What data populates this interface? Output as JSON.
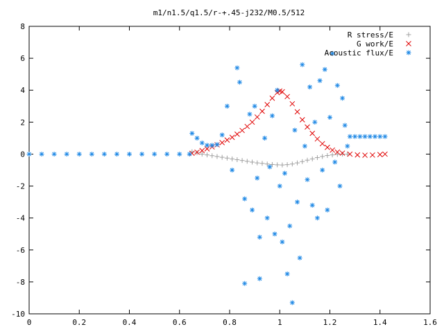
{
  "chart_data": {
    "type": "scatter",
    "title": "m1/n1.5/q1.5/r-+.45-j232/M0.5/512",
    "xlabel": "",
    "ylabel": "",
    "xlim": [
      0,
      1.6
    ],
    "ylim": [
      -10,
      8
    ],
    "x_ticks": [
      "0",
      "0.2",
      "0.4",
      "0.6",
      "0.8",
      "1",
      "1.2",
      "1.4",
      "1.6"
    ],
    "y_ticks": [
      "-10",
      "-8",
      "-6",
      "-4",
      "-2",
      "0",
      "2",
      "4",
      "6",
      "8"
    ],
    "grid": false,
    "legend_position": "top-right",
    "series": [
      {
        "name": "R stress/E",
        "marker": "+",
        "color": "#a0a0a0",
        "points": [
          [
            0.65,
            0.15
          ],
          [
            0.67,
            0.08
          ],
          [
            0.69,
            0.0
          ],
          [
            0.71,
            -0.05
          ],
          [
            0.73,
            -0.1
          ],
          [
            0.75,
            -0.15
          ],
          [
            0.77,
            -0.2
          ],
          [
            0.79,
            -0.25
          ],
          [
            0.81,
            -0.3
          ],
          [
            0.83,
            -0.35
          ],
          [
            0.85,
            -0.4
          ],
          [
            0.87,
            -0.45
          ],
          [
            0.89,
            -0.5
          ],
          [
            0.91,
            -0.55
          ],
          [
            0.93,
            -0.58
          ],
          [
            0.95,
            -0.62
          ],
          [
            0.97,
            -0.65
          ],
          [
            0.99,
            -0.67
          ],
          [
            1.01,
            -0.68
          ],
          [
            1.03,
            -0.66
          ],
          [
            1.05,
            -0.62
          ],
          [
            1.07,
            -0.55
          ],
          [
            1.09,
            -0.47
          ],
          [
            1.11,
            -0.38
          ],
          [
            1.13,
            -0.3
          ],
          [
            1.15,
            -0.22
          ],
          [
            1.17,
            -0.15
          ],
          [
            1.19,
            -0.09
          ],
          [
            1.21,
            -0.05
          ],
          [
            1.23,
            -0.02
          ],
          [
            1.25,
            0.0
          ],
          [
            1.27,
            0.0
          ]
        ]
      },
      {
        "name": "G work/E",
        "marker": "x",
        "color": "#e00000",
        "points": [
          [
            0.65,
            0.05
          ],
          [
            0.67,
            0.12
          ],
          [
            0.69,
            0.22
          ],
          [
            0.71,
            0.33
          ],
          [
            0.73,
            0.45
          ],
          [
            0.75,
            0.58
          ],
          [
            0.77,
            0.72
          ],
          [
            0.79,
            0.88
          ],
          [
            0.81,
            1.05
          ],
          [
            0.83,
            1.25
          ],
          [
            0.85,
            1.48
          ],
          [
            0.87,
            1.73
          ],
          [
            0.89,
            2.0
          ],
          [
            0.91,
            2.32
          ],
          [
            0.93,
            2.68
          ],
          [
            0.95,
            3.1
          ],
          [
            0.97,
            3.5
          ],
          [
            0.99,
            3.85
          ],
          [
            1.0,
            3.95
          ],
          [
            1.01,
            3.9
          ],
          [
            1.03,
            3.6
          ],
          [
            1.05,
            3.15
          ],
          [
            1.07,
            2.65
          ],
          [
            1.09,
            2.15
          ],
          [
            1.11,
            1.7
          ],
          [
            1.13,
            1.3
          ],
          [
            1.15,
            0.95
          ],
          [
            1.17,
            0.65
          ],
          [
            1.19,
            0.42
          ],
          [
            1.21,
            0.25
          ],
          [
            1.23,
            0.13
          ],
          [
            1.25,
            0.06
          ],
          [
            1.28,
            0.0
          ],
          [
            1.31,
            -0.05
          ],
          [
            1.34,
            -0.07
          ],
          [
            1.37,
            -0.06
          ],
          [
            1.4,
            -0.03
          ],
          [
            1.42,
            0.0
          ]
        ]
      },
      {
        "name": "Acoustic flux/E",
        "marker": "*",
        "color": "#1e88e5",
        "points": [
          [
            0.0,
            0.0
          ],
          [
            0.05,
            0.0
          ],
          [
            0.1,
            0.0
          ],
          [
            0.15,
            0.0
          ],
          [
            0.2,
            0.0
          ],
          [
            0.25,
            0.0
          ],
          [
            0.3,
            0.0
          ],
          [
            0.35,
            0.0
          ],
          [
            0.4,
            0.0
          ],
          [
            0.45,
            0.0
          ],
          [
            0.5,
            0.0
          ],
          [
            0.55,
            0.0
          ],
          [
            0.6,
            0.0
          ],
          [
            0.64,
            0.0
          ],
          [
            0.65,
            1.3
          ],
          [
            0.67,
            1.0
          ],
          [
            0.69,
            0.7
          ],
          [
            0.71,
            0.55
          ],
          [
            0.73,
            0.55
          ],
          [
            0.75,
            0.6
          ],
          [
            0.77,
            1.2
          ],
          [
            0.79,
            3.0
          ],
          [
            0.81,
            -1.0
          ],
          [
            0.83,
            5.4
          ],
          [
            0.84,
            4.5
          ],
          [
            0.86,
            -2.8
          ],
          [
            0.86,
            -8.1
          ],
          [
            0.88,
            2.5
          ],
          [
            0.89,
            -3.5
          ],
          [
            0.9,
            3.0
          ],
          [
            0.91,
            -1.5
          ],
          [
            0.92,
            -5.2
          ],
          [
            0.92,
            -7.8
          ],
          [
            0.94,
            1.0
          ],
          [
            0.95,
            -4.0
          ],
          [
            0.96,
            -0.8
          ],
          [
            0.97,
            2.4
          ],
          [
            0.98,
            -5.0
          ],
          [
            0.99,
            4.0
          ],
          [
            1.0,
            -2.0
          ],
          [
            1.01,
            -5.5
          ],
          [
            1.02,
            -1.2
          ],
          [
            1.03,
            -7.5
          ],
          [
            1.04,
            -4.5
          ],
          [
            1.05,
            -9.3
          ],
          [
            1.06,
            1.5
          ],
          [
            1.07,
            -3.0
          ],
          [
            1.08,
            -6.5
          ],
          [
            1.09,
            5.6
          ],
          [
            1.1,
            0.5
          ],
          [
            1.11,
            -1.6
          ],
          [
            1.12,
            4.2
          ],
          [
            1.13,
            -3.2
          ],
          [
            1.14,
            2.0
          ],
          [
            1.15,
            -4.0
          ],
          [
            1.16,
            4.6
          ],
          [
            1.17,
            -1.0
          ],
          [
            1.18,
            5.3
          ],
          [
            1.19,
            -3.5
          ],
          [
            1.2,
            2.3
          ],
          [
            1.21,
            6.3
          ],
          [
            1.22,
            -0.5
          ],
          [
            1.23,
            4.3
          ],
          [
            1.24,
            -2.0
          ],
          [
            1.25,
            3.5
          ],
          [
            1.26,
            1.8
          ],
          [
            1.27,
            0.5
          ],
          [
            1.28,
            1.1
          ],
          [
            1.3,
            1.1
          ],
          [
            1.32,
            1.1
          ],
          [
            1.34,
            1.1
          ],
          [
            1.36,
            1.1
          ],
          [
            1.38,
            1.1
          ],
          [
            1.4,
            1.1
          ],
          [
            1.42,
            1.1
          ]
        ]
      }
    ]
  }
}
